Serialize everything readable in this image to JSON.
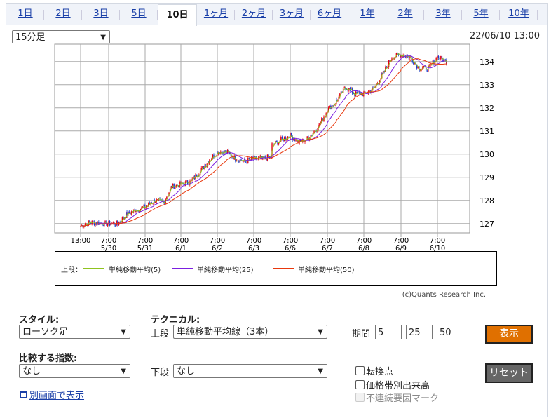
{
  "tabs": [
    {
      "label": "1日"
    },
    {
      "label": "2日"
    },
    {
      "label": "3日"
    },
    {
      "label": "5日"
    },
    {
      "label": "10日",
      "active": true
    },
    {
      "label": "1ヶ月"
    },
    {
      "label": "2ヶ月"
    },
    {
      "label": "3ヶ月"
    },
    {
      "label": "6ヶ月"
    },
    {
      "label": "1年"
    },
    {
      "label": "2年"
    },
    {
      "label": "3年"
    },
    {
      "label": "5年"
    },
    {
      "label": "10年"
    }
  ],
  "interval_select": "15分足",
  "timestamp": "22/06/10 13:00",
  "chart_data": {
    "type": "candlestick",
    "y_ticks": [
      "127",
      "128",
      "129",
      "130",
      "131",
      "132",
      "133",
      "134"
    ],
    "ylim": [
      126.6,
      134.75
    ],
    "grid": true,
    "x_ticks": [
      {
        "t": "13:00",
        "d": ""
      },
      {
        "t": "7:00",
        "d": "5/30"
      },
      {
        "t": "7:00",
        "d": "5/31"
      },
      {
        "t": "7:00",
        "d": "6/1"
      },
      {
        "t": "7:00",
        "d": "6/2"
      },
      {
        "t": "7:00",
        "d": "6/3"
      },
      {
        "t": "7:00",
        "d": "6/6"
      },
      {
        "t": "7:00",
        "d": "6/7"
      },
      {
        "t": "7:00",
        "d": "6/8"
      },
      {
        "t": "7:00",
        "d": "6/9"
      },
      {
        "t": "7:00",
        "d": "6/10"
      }
    ],
    "close": [
      [
        "5/27 13:00",
        126.9
      ],
      [
        "5/27 19:00",
        127.05
      ],
      [
        "5/30 07:00",
        127.0
      ],
      [
        "5/30 13:00",
        127.0
      ],
      [
        "5/30 19:00",
        127.4
      ],
      [
        "5/31 01:00",
        127.6
      ],
      [
        "5/31 07:00",
        127.7
      ],
      [
        "5/31 13:00",
        128.0
      ],
      [
        "5/31 19:00",
        127.9
      ],
      [
        "6/1 01:00",
        128.6
      ],
      [
        "6/1 07:00",
        128.7
      ],
      [
        "6/1 13:00",
        128.8
      ],
      [
        "6/1 19:00",
        129.2
      ],
      [
        "6/2 01:00",
        129.7
      ],
      [
        "6/2 07:00",
        130.1
      ],
      [
        "6/2 13:00",
        130.1
      ],
      [
        "6/2 19:00",
        129.8
      ],
      [
        "6/3 01:00",
        129.7
      ],
      [
        "6/3 07:00",
        129.8
      ],
      [
        "6/3 13:00",
        129.8
      ],
      [
        "6/3 19:00",
        129.9
      ],
      [
        "6/4 01:00",
        130.4
      ],
      [
        "6/6 07:00",
        130.8
      ],
      [
        "6/6 13:00",
        130.5
      ],
      [
        "6/6 19:00",
        130.7
      ],
      [
        "6/7 01:00",
        131.2
      ],
      [
        "6/7 07:00",
        131.9
      ],
      [
        "6/7 13:00",
        132.3
      ],
      [
        "6/7 19:00",
        132.9
      ],
      [
        "6/8 01:00",
        132.6
      ],
      [
        "6/8 07:00",
        132.6
      ],
      [
        "6/8 13:00",
        132.8
      ],
      [
        "6/8 19:00",
        133.4
      ],
      [
        "6/9 01:00",
        134.2
      ],
      [
        "6/9 07:00",
        134.3
      ],
      [
        "6/9 13:00",
        134.2
      ],
      [
        "6/9 19:00",
        133.7
      ],
      [
        "6/10 01:00",
        133.7
      ],
      [
        "6/10 07:00",
        134.2
      ],
      [
        "6/10 13:00",
        134.0
      ]
    ],
    "legend": {
      "prefix": "上段：",
      "series": [
        {
          "name": "単純移動平均(5)",
          "color": "#8fc31f"
        },
        {
          "name": "単純移動平均(25)",
          "color": "#7b1fe0"
        },
        {
          "name": "単純移動平均(50)",
          "color": "#e8380d"
        }
      ]
    },
    "up_color": "#e60012",
    "down_color": "#1a3fd0"
  },
  "copyright": "(c)Quants Research Inc.",
  "controls": {
    "style_label": "スタイル:",
    "style_value": "ローソク足",
    "technical_label": "テクニカル:",
    "upper_label": "上段",
    "upper_value": "単純移動平均線（3本）",
    "period_label": "期間",
    "periods": [
      "5",
      "25",
      "50"
    ],
    "show_button": "表示",
    "show_color": "#e07000",
    "compare_label": "比較する指数:",
    "compare_value": "なし",
    "lower_label": "下段",
    "lower_value": "なし",
    "checkboxes": [
      "転換点",
      "価格帯別出来高",
      "不連続要因マーク"
    ],
    "reset_button": "リセット",
    "new_window_link": "別画面で表示"
  }
}
